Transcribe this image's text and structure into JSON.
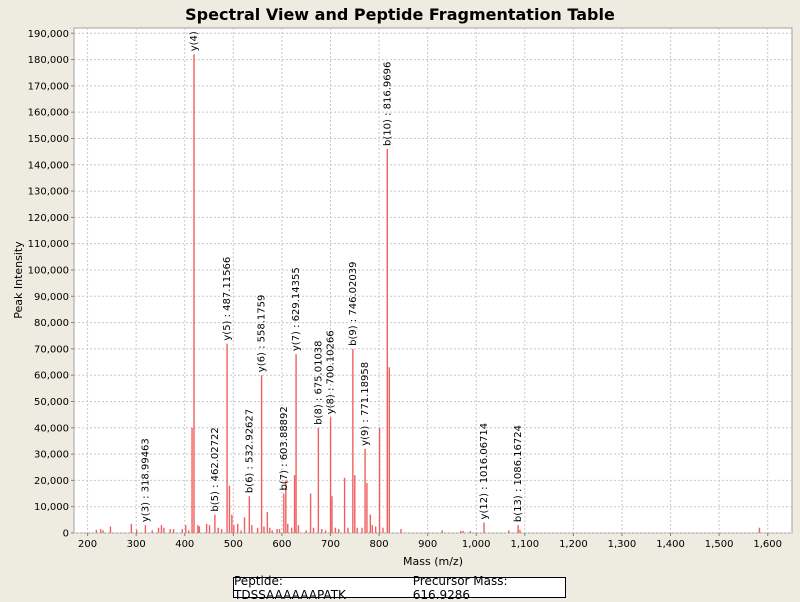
{
  "colors": {
    "peaks": "#f06060",
    "grid": "#c8c8c8",
    "plot_bg": "#ffffff",
    "frame_bg": "#eeebe0"
  },
  "info_box": {
    "peptide": "Peptide: TDSSAAAAAAPATK",
    "precursor": "Precursor Mass: 616.9286"
  },
  "chart_data": {
    "type": "bar",
    "title": "Spectral View and Peptide Fragmentation Table",
    "xlabel": "Mass (m/z)",
    "ylabel": "Peak Intensity",
    "xlim": [
      172,
      1650
    ],
    "ylim": [
      0,
      192000
    ],
    "grid": true,
    "x_ticks": [
      200,
      300,
      400,
      500,
      600,
      700,
      800,
      900,
      1000,
      1100,
      1200,
      1300,
      1400,
      1500,
      1600
    ],
    "x_tick_labels": [
      "200",
      "300",
      "400",
      "500",
      "600",
      "700",
      "800",
      "900",
      "1,000",
      "1,100",
      "1,200",
      "1,300",
      "1,400",
      "1,500",
      "1,600"
    ],
    "y_ticks": [
      0,
      10000,
      20000,
      30000,
      40000,
      50000,
      60000,
      70000,
      80000,
      90000,
      100000,
      110000,
      120000,
      130000,
      140000,
      150000,
      160000,
      170000,
      180000,
      190000
    ],
    "y_tick_labels": [
      "0",
      "10,000",
      "20,000",
      "30,000",
      "40,000",
      "50,000",
      "60,000",
      "70,000",
      "80,000",
      "90,000",
      "100,000",
      "110,000",
      "120,000",
      "130,000",
      "140,000",
      "150,000",
      "160,000",
      "170,000",
      "180,000",
      "190,000"
    ],
    "peaks": [
      [
        218,
        1200
      ],
      [
        227,
        1500
      ],
      [
        232,
        1000
      ],
      [
        247,
        2500
      ],
      [
        290,
        3500
      ],
      [
        301,
        1200
      ],
      [
        318.99,
        3000
      ],
      [
        333,
        1000
      ],
      [
        346,
        2000
      ],
      [
        352,
        3000
      ],
      [
        357,
        2000
      ],
      [
        370,
        1500
      ],
      [
        377,
        1500
      ],
      [
        395,
        1500
      ],
      [
        402,
        3000
      ],
      [
        408,
        1000
      ],
      [
        415,
        40000
      ],
      [
        419,
        182000
      ],
      [
        427,
        3000
      ],
      [
        430,
        2500
      ],
      [
        445,
        3500
      ],
      [
        451,
        3000
      ],
      [
        462.03,
        7000
      ],
      [
        469,
        2000
      ],
      [
        476,
        1500
      ],
      [
        487.12,
        72000
      ],
      [
        492,
        18000
      ],
      [
        497,
        7000
      ],
      [
        501,
        3000
      ],
      [
        509,
        3500
      ],
      [
        516,
        1000
      ],
      [
        523,
        6000
      ],
      [
        532.93,
        14000
      ],
      [
        538,
        3000
      ],
      [
        550,
        2000
      ],
      [
        558.18,
        60000
      ],
      [
        563,
        2500
      ],
      [
        570,
        8000
      ],
      [
        575,
        2000
      ],
      [
        580,
        1000
      ],
      [
        590,
        1500
      ],
      [
        595,
        1500
      ],
      [
        603.89,
        15000
      ],
      [
        608,
        20000
      ],
      [
        612,
        3500
      ],
      [
        620,
        2000
      ],
      [
        626,
        22000
      ],
      [
        629.14,
        68000
      ],
      [
        634,
        3000
      ],
      [
        650,
        1000
      ],
      [
        659,
        15000
      ],
      [
        665,
        2000
      ],
      [
        675.01,
        40000
      ],
      [
        682,
        1500
      ],
      [
        690,
        1000
      ],
      [
        700.1,
        44000
      ],
      [
        703,
        14000
      ],
      [
        710,
        2000
      ],
      [
        717,
        1500
      ],
      [
        729,
        21000
      ],
      [
        736,
        2000
      ],
      [
        746.02,
        70000
      ],
      [
        750,
        22000
      ],
      [
        755,
        2000
      ],
      [
        765,
        2000
      ],
      [
        771.19,
        32000
      ],
      [
        775,
        19000
      ],
      [
        782,
        7000
      ],
      [
        786,
        3000
      ],
      [
        793,
        2500
      ],
      [
        801,
        40000
      ],
      [
        808,
        2000
      ],
      [
        816.97,
        146000
      ],
      [
        821,
        63000
      ],
      [
        845,
        1500
      ],
      [
        930,
        1000
      ],
      [
        968,
        800
      ],
      [
        973,
        800
      ],
      [
        988,
        700
      ],
      [
        1016.07,
        4000
      ],
      [
        1067,
        1000
      ],
      [
        1086.17,
        3000
      ],
      [
        1090,
        1200
      ],
      [
        1583,
        2000
      ]
    ],
    "annotations": [
      {
        "x": 318.99,
        "y": 3000,
        "label": "y(3) : 318.99463"
      },
      {
        "x": 419,
        "y": 182000,
        "label": "y(4)"
      },
      {
        "x": 462.03,
        "y": 7000,
        "label": "b(5) : 462.02722"
      },
      {
        "x": 487.12,
        "y": 72000,
        "label": "y(5) : 487.11566"
      },
      {
        "x": 532.93,
        "y": 14000,
        "label": "b(6) : 532.92627"
      },
      {
        "x": 558.18,
        "y": 60000,
        "label": "y(6) : 558.1759"
      },
      {
        "x": 603.89,
        "y": 15000,
        "label": "b(7) : 603.88892"
      },
      {
        "x": 629.14,
        "y": 68000,
        "label": "y(7) : 629.14355"
      },
      {
        "x": 675.01,
        "y": 40000,
        "label": "b(8) : 675.01038"
      },
      {
        "x": 700.1,
        "y": 44000,
        "label": "y(8) : 700.10266"
      },
      {
        "x": 746.02,
        "y": 70000,
        "label": "b(9) : 746.02039"
      },
      {
        "x": 771.19,
        "y": 32000,
        "label": "y(9) : 771.18958"
      },
      {
        "x": 816.97,
        "y": 146000,
        "label": "b(10) : 816.9696"
      },
      {
        "x": 1016.07,
        "y": 4000,
        "label": "y(12) : 1016.06714"
      },
      {
        "x": 1086.17,
        "y": 3000,
        "label": "b(13) : 1086.16724"
      }
    ]
  }
}
